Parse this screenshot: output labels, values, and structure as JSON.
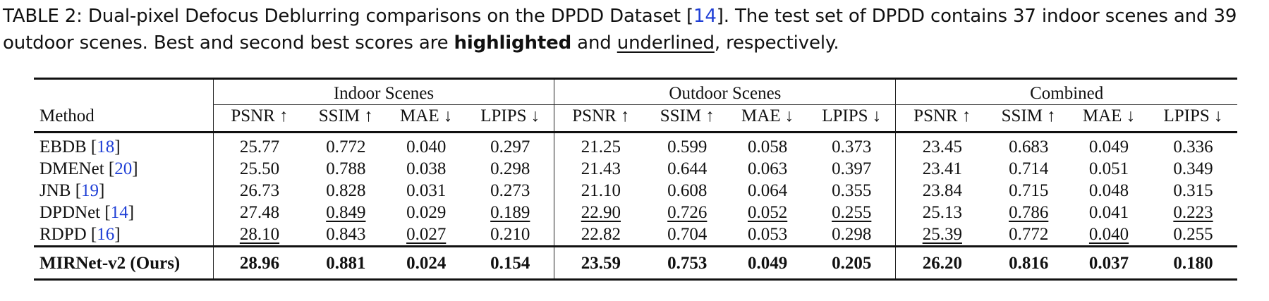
{
  "caption": {
    "part1": "TABLE 2: Dual-pixel Defocus Deblurring comparisons on the DPDD Dataset [",
    "ref": "14",
    "part2": "]. The test set of DPDD contains 37 indoor scenes and 39 outdoor scenes. Best and second best scores are ",
    "bold_word": "highlighted",
    "part3": " and ",
    "underlined_word": "underlined",
    "part4": ", respectively."
  },
  "table": {
    "method_header": "Method",
    "groups": [
      "Indoor Scenes",
      "Outdoor Scenes",
      "Combined"
    ],
    "metrics": [
      "PSNR ↑",
      "SSIM ↑",
      "MAE ↓",
      "LPIPS ↓"
    ],
    "rows": [
      {
        "name": "EBDB [",
        "ref": "18",
        "close": "]",
        "cells": [
          [
            "25.77",
            ""
          ],
          [
            "0.772",
            ""
          ],
          [
            "0.040",
            ""
          ],
          [
            "0.297",
            ""
          ],
          [
            "21.25",
            ""
          ],
          [
            "0.599",
            ""
          ],
          [
            "0.058",
            ""
          ],
          [
            "0.373",
            ""
          ],
          [
            "23.45",
            ""
          ],
          [
            "0.683",
            ""
          ],
          [
            "0.049",
            ""
          ],
          [
            "0.336",
            ""
          ]
        ]
      },
      {
        "name": "DMENet [",
        "ref": "20",
        "close": "]",
        "cells": [
          [
            "25.50",
            ""
          ],
          [
            "0.788",
            ""
          ],
          [
            "0.038",
            ""
          ],
          [
            "0.298",
            ""
          ],
          [
            "21.43",
            ""
          ],
          [
            "0.644",
            ""
          ],
          [
            "0.063",
            ""
          ],
          [
            "0.397",
            ""
          ],
          [
            "23.41",
            ""
          ],
          [
            "0.714",
            ""
          ],
          [
            "0.051",
            ""
          ],
          [
            "0.349",
            ""
          ]
        ]
      },
      {
        "name": "JNB [",
        "ref": "19",
        "close": "]",
        "cells": [
          [
            "26.73",
            ""
          ],
          [
            "0.828",
            ""
          ],
          [
            "0.031",
            ""
          ],
          [
            "0.273",
            ""
          ],
          [
            "21.10",
            ""
          ],
          [
            "0.608",
            ""
          ],
          [
            "0.064",
            ""
          ],
          [
            "0.355",
            ""
          ],
          [
            "23.84",
            ""
          ],
          [
            "0.715",
            ""
          ],
          [
            "0.048",
            ""
          ],
          [
            "0.315",
            ""
          ]
        ]
      },
      {
        "name": "DPDNet [",
        "ref": "14",
        "close": "]",
        "cells": [
          [
            "27.48",
            ""
          ],
          [
            "0.849",
            "u"
          ],
          [
            "0.029",
            ""
          ],
          [
            "0.189",
            "u"
          ],
          [
            "22.90",
            "u"
          ],
          [
            "0.726",
            "u"
          ],
          [
            "0.052",
            "u"
          ],
          [
            "0.255",
            "u"
          ],
          [
            "25.13",
            ""
          ],
          [
            "0.786",
            "u"
          ],
          [
            "0.041",
            ""
          ],
          [
            "0.223",
            "u"
          ]
        ]
      },
      {
        "name": "RDPD [",
        "ref": "16",
        "close": "]",
        "cells": [
          [
            "28.10",
            "u"
          ],
          [
            "0.843",
            ""
          ],
          [
            "0.027",
            "u"
          ],
          [
            "0.210",
            ""
          ],
          [
            "22.82",
            ""
          ],
          [
            "0.704",
            ""
          ],
          [
            "0.053",
            ""
          ],
          [
            "0.298",
            ""
          ],
          [
            "25.39",
            "u"
          ],
          [
            "0.772",
            ""
          ],
          [
            "0.040",
            "u"
          ],
          [
            "0.255",
            ""
          ]
        ]
      }
    ],
    "ours": {
      "name": "MIRNet-v2  (Ours)",
      "cells": [
        "28.96",
        "0.881",
        "0.024",
        "0.154",
        "23.59",
        "0.753",
        "0.049",
        "0.205",
        "26.20",
        "0.816",
        "0.037",
        "0.180"
      ]
    }
  }
}
